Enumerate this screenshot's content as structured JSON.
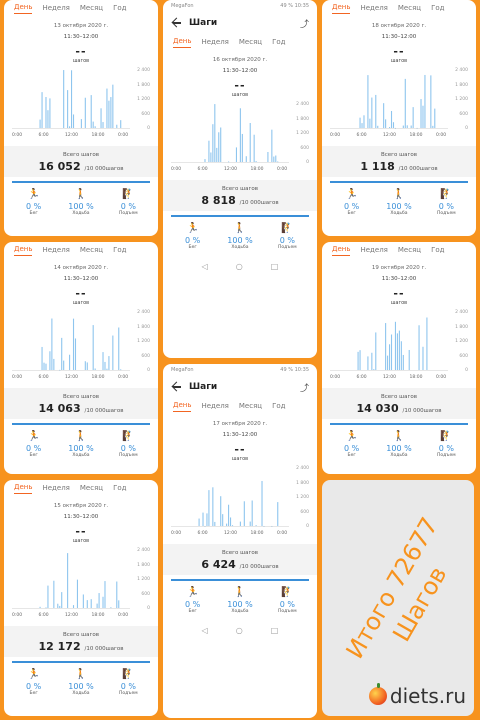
{
  "common": {
    "tabs": [
      "День",
      "Неделя",
      "Месяц",
      "Год"
    ],
    "time_range": "11:30–12:00",
    "dash": "--",
    "steps_label": "шагов",
    "total_label": "Всего шагов",
    "goal": "/10 000шагов",
    "x_ticks": [
      "0:00",
      "6:00",
      "12:00",
      "18:00",
      "0:00"
    ],
    "y_ticks": [
      "2 400",
      "1 800",
      "1 200",
      "600",
      "0"
    ],
    "activity_labels": [
      "Бег",
      "Ходьба",
      "Подъем"
    ],
    "activity_pcts": [
      "0 %",
      "100 %",
      "0 %"
    ],
    "screen_title": "Шаги",
    "status_left": "MegaFon",
    "status_right": "49 % 10:35"
  },
  "panels": [
    {
      "id": "p1",
      "date": "13 октября 2020 г.",
      "total": "16 052",
      "active_tab": 0
    },
    {
      "id": "p2",
      "date": "16 октября 2020 г.",
      "total": "8 818",
      "active_tab": 0
    },
    {
      "id": "p3",
      "date": "18 октября 2020 г.",
      "total": "1 118",
      "active_tab": 0
    },
    {
      "id": "p4",
      "date": "14 октября 2020 г.",
      "total": "14 063",
      "active_tab": 0
    },
    {
      "id": "p5",
      "date": "19 октября 2020 г.",
      "total": "14 030",
      "active_tab": 0
    },
    {
      "id": "p6",
      "date": "17 октября 2020 г.",
      "total": "6 424",
      "active_tab": 0
    },
    {
      "id": "p7",
      "date": "15 октября 2020 г.",
      "total": "12 172",
      "active_tab": 0
    }
  ],
  "promo": {
    "text_line1": "Итого 72677",
    "text_line2": "Шагов",
    "logo": "diets.ru"
  },
  "colors": {
    "accent": "#f26522",
    "bar": "#8ec5ee",
    "progress": "#3a8fd8",
    "background": "#f7931e"
  }
}
